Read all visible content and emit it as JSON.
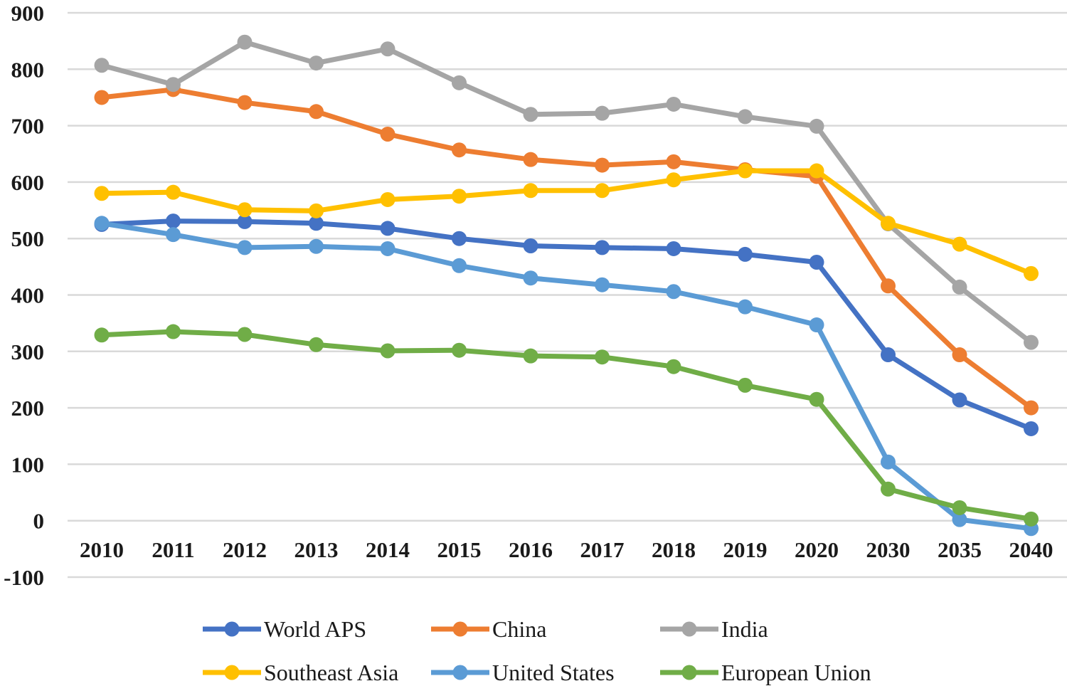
{
  "chart_data": {
    "type": "line",
    "title": "",
    "xlabel": "",
    "ylabel": "",
    "ylim": [
      -100,
      900
    ],
    "yticks": [
      -100,
      0,
      100,
      200,
      300,
      400,
      500,
      600,
      700,
      800,
      900
    ],
    "ytick_labels": [
      "-100",
      "0",
      "100",
      "200",
      "300",
      "400",
      "500",
      "600",
      "700",
      "800",
      "900"
    ],
    "categories": [
      "2010",
      "2011",
      "2012",
      "2013",
      "2014",
      "2015",
      "2016",
      "2017",
      "2018",
      "2019",
      "2020",
      "2030",
      "2035",
      "2040"
    ],
    "grid": true,
    "legend_position": "bottom",
    "series": [
      {
        "name": "World APS",
        "color": "#4472c4",
        "values": [
          525,
          531,
          530,
          527,
          518,
          500,
          487,
          484,
          482,
          472,
          458,
          294,
          214,
          163
        ]
      },
      {
        "name": "China",
        "color": "#ed7d31",
        "values": [
          750,
          764,
          741,
          725,
          685,
          657,
          640,
          630,
          636,
          622,
          610,
          416,
          294,
          200
        ]
      },
      {
        "name": "India",
        "color": "#a5a5a5",
        "values": [
          807,
          773,
          848,
          811,
          836,
          776,
          720,
          722,
          738,
          716,
          699,
          526,
          414,
          316
        ]
      },
      {
        "name": "Southeast Asia",
        "color": "#ffc000",
        "values": [
          580,
          582,
          551,
          549,
          569,
          575,
          585,
          585,
          604,
          620,
          620,
          527,
          490,
          438
        ]
      },
      {
        "name": "United States",
        "color": "#5b9bd5",
        "values": [
          527,
          507,
          484,
          486,
          482,
          452,
          430,
          418,
          406,
          379,
          347,
          104,
          2,
          -14
        ]
      },
      {
        "name": "European Union",
        "color": "#70ad47",
        "values": [
          329,
          335,
          330,
          312,
          301,
          302,
          292,
          290,
          273,
          240,
          215,
          56,
          23,
          3
        ]
      }
    ]
  }
}
